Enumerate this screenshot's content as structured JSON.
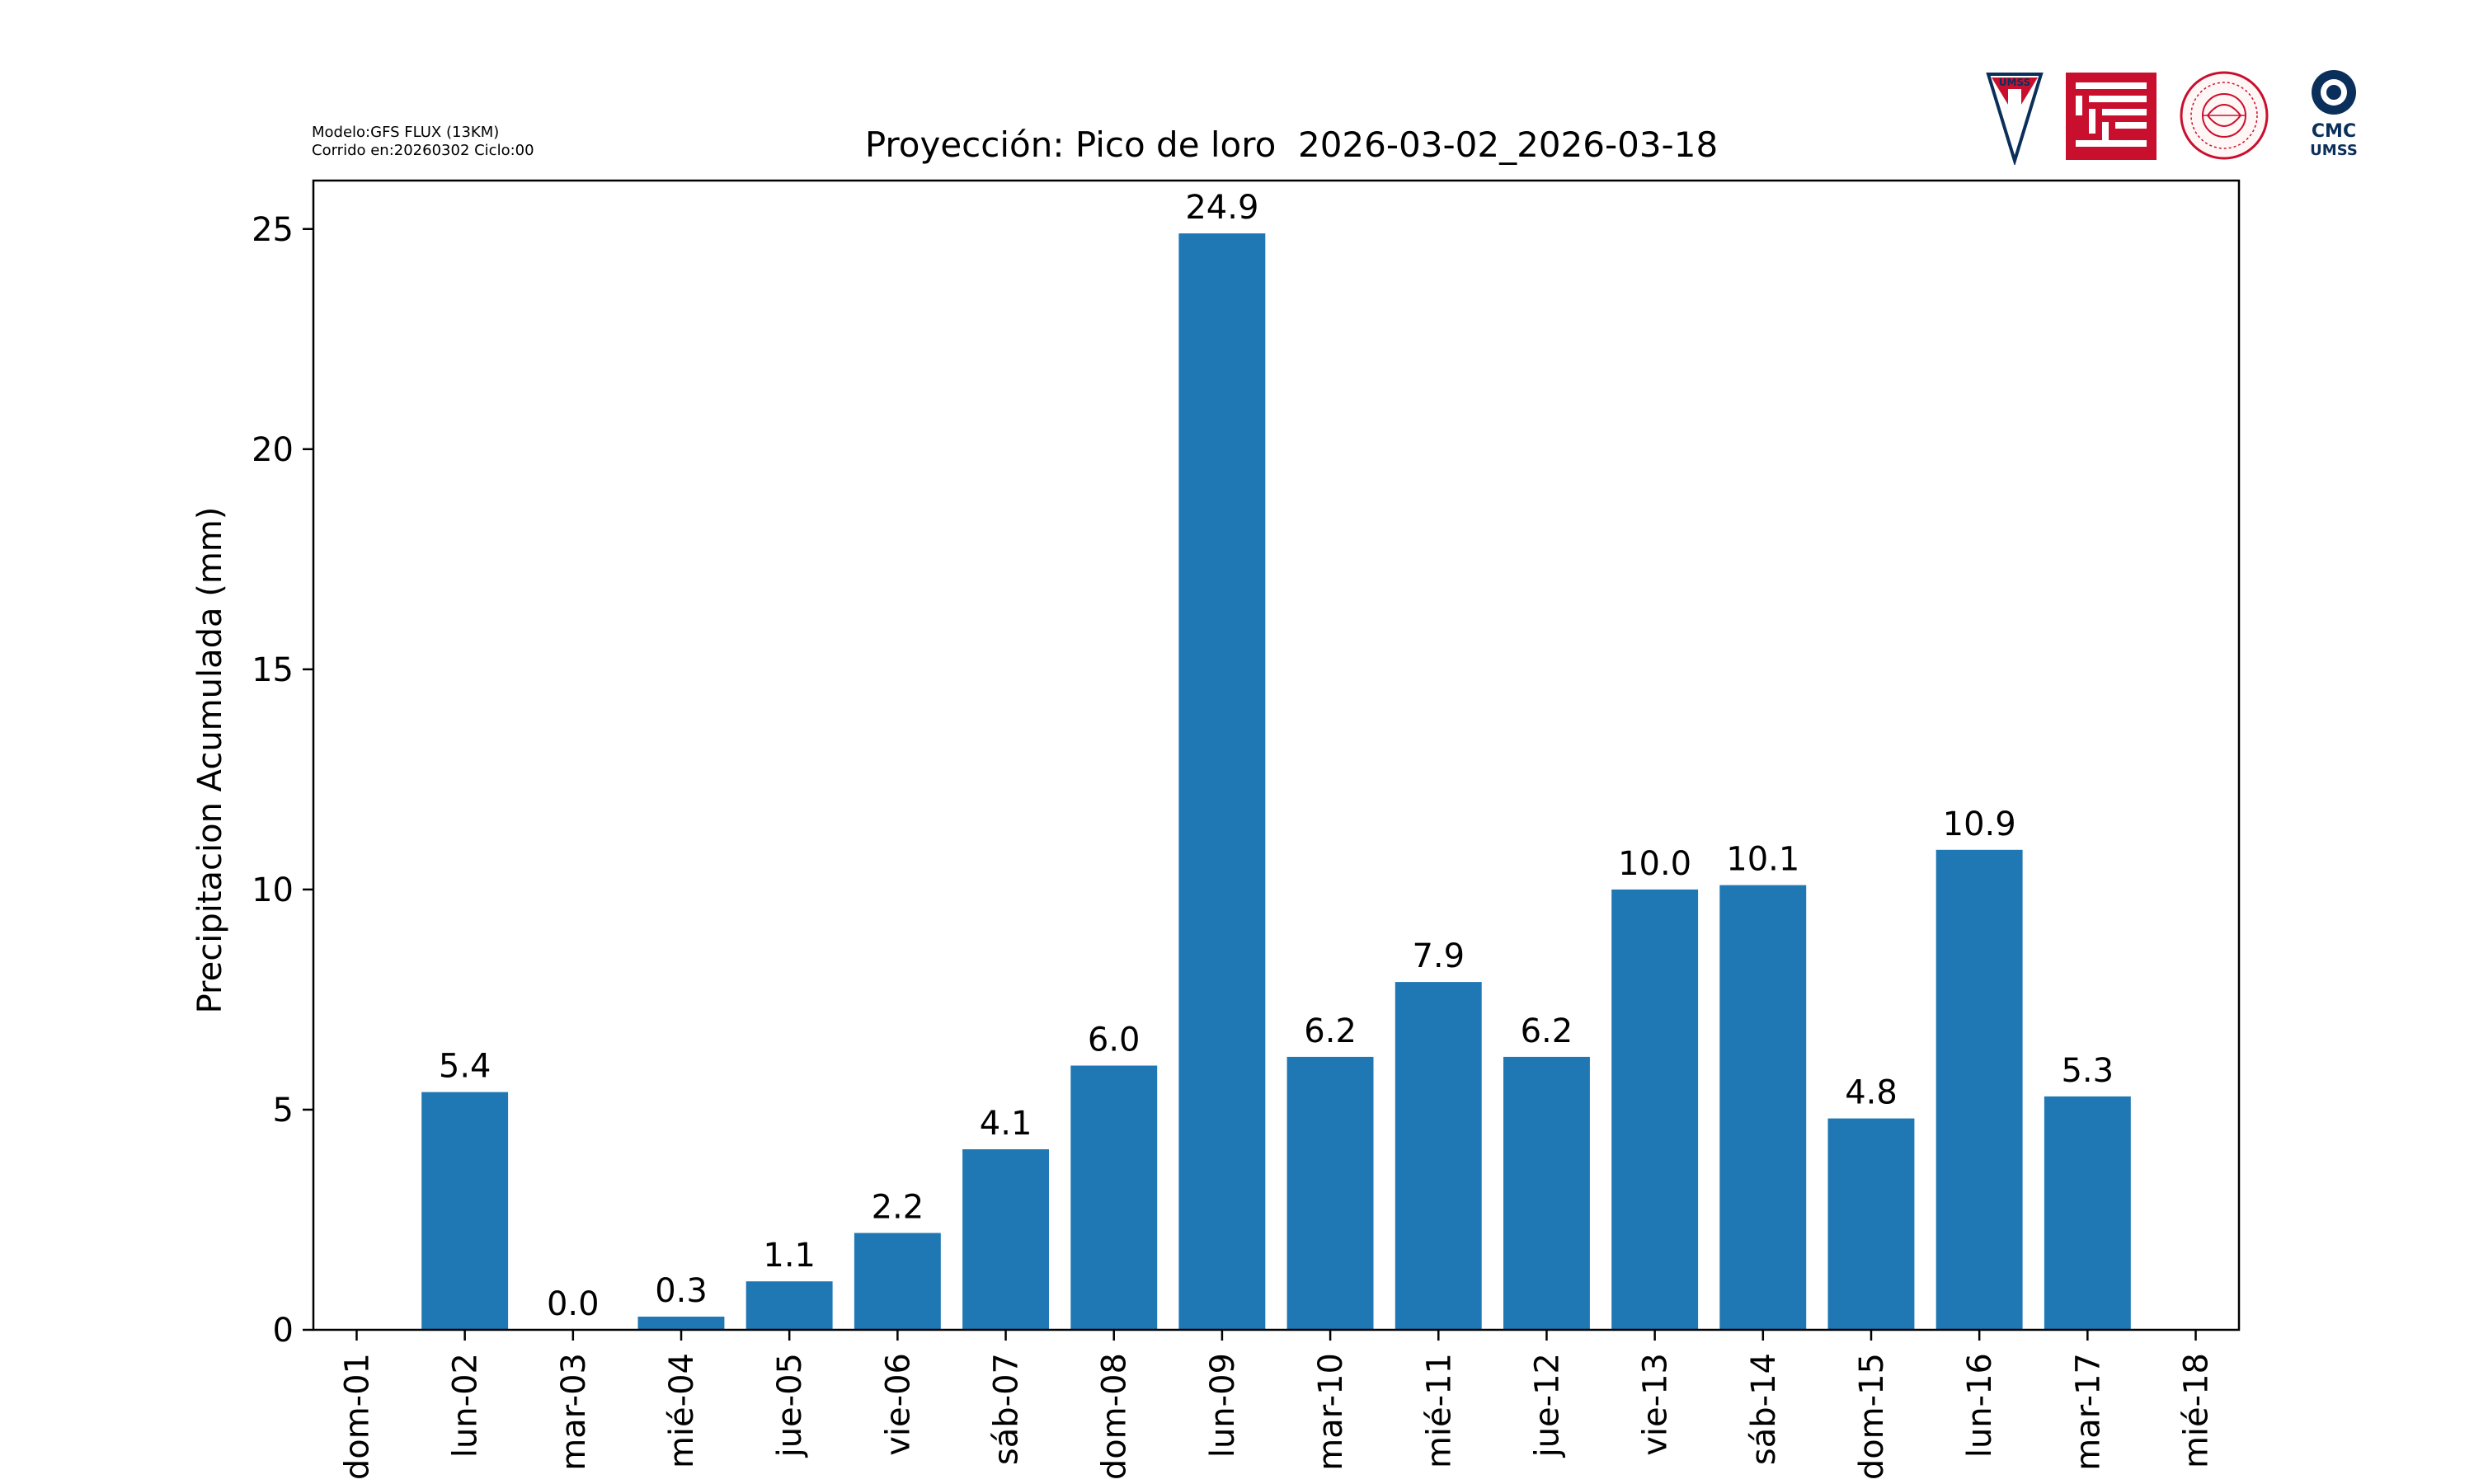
{
  "meta": {
    "model_line": "Modelo:GFS FLUX (13KM)",
    "run_line": "Corrido en:20260302 Ciclo:00"
  },
  "logos": {
    "umss_text": "UMSS",
    "cmc_text": "CMC",
    "cmc_sub": "UMSS"
  },
  "colors": {
    "bar": "#1f77b4",
    "axis": "#000000",
    "logo_red": "#c8102e",
    "logo_navy": "#0b2f5b"
  },
  "chart_data": {
    "type": "bar",
    "title": "Proyección: Pico de loro  2026-03-02_2026-03-18",
    "xlabel": "",
    "ylabel": "Precipitacion Acumulada (mm)",
    "ylim": [
      0,
      26.1
    ],
    "yticks": [
      0,
      5,
      10,
      15,
      20,
      25
    ],
    "grid": false,
    "tick_labels": [
      "dom-01",
      "lun-02",
      "mar-03",
      "mié-04",
      "jue-05",
      "vie-06",
      "sáb-07",
      "dom-08",
      "lun-09",
      "mar-10",
      "mié-11",
      "jue-12",
      "vie-13",
      "sáb-14",
      "dom-15",
      "lun-16",
      "mar-17",
      "mié-18"
    ],
    "categories": [
      "lun-02",
      "mar-03",
      "mié-04",
      "jue-05",
      "vie-06",
      "sáb-07",
      "dom-08",
      "lun-09",
      "mar-10",
      "mié-11",
      "jue-12",
      "vie-13",
      "sáb-14",
      "dom-15",
      "lun-16",
      "mar-17"
    ],
    "values": [
      5.4,
      0.0,
      0.3,
      1.1,
      2.2,
      4.1,
      6.0,
      24.9,
      6.2,
      7.9,
      6.2,
      10.0,
      10.1,
      4.8,
      10.9,
      5.3
    ],
    "value_labels": [
      "5.4",
      "0.0",
      "0.3",
      "1.1",
      "2.2",
      "4.1",
      "6.0",
      "24.9",
      "6.2",
      "7.9",
      "6.2",
      "10.0",
      "10.1",
      "4.8",
      "10.9",
      "5.3"
    ]
  }
}
